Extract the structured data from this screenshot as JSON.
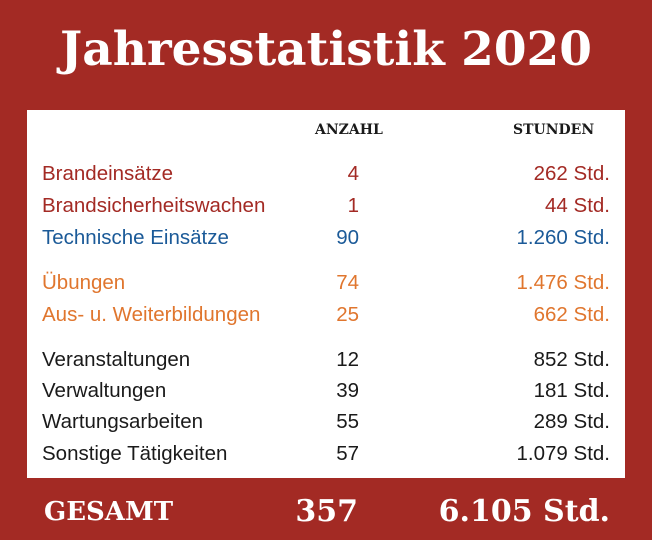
{
  "title": "Jahresstatistik 2020",
  "headers": {
    "anzahl": "ANZAHL",
    "stunden": "STUNDEN"
  },
  "rows": [
    {
      "label": "Brandeinsätze",
      "count": "4",
      "hours": "262 Std.",
      "color": "#a32a24"
    },
    {
      "label": "Brandsicherheitswachen",
      "count": "1",
      "hours": "44 Std.",
      "color": "#a32a24"
    },
    {
      "label": "Technische Einsätze",
      "count": "90",
      "hours": "1.260 Std.",
      "color": "#1b5a98"
    },
    {
      "label": "Übungen",
      "count": "74",
      "hours": "1.476 Std.",
      "color": "#e0762e"
    },
    {
      "label": "Aus- u. Weiterbildungen",
      "count": "25",
      "hours": "662 Std.",
      "color": "#e0762e"
    },
    {
      "label": "Veranstaltungen",
      "count": "12",
      "hours": "852 Std.",
      "color": "#1a1a1a"
    },
    {
      "label": "Verwaltungen",
      "count": "39",
      "hours": "181 Std.",
      "color": "#1a1a1a"
    },
    {
      "label": "Wartungsarbeiten",
      "count": "55",
      "hours": "289 Std.",
      "color": "#1a1a1a"
    },
    {
      "label": "Sonstige Tätigkeiten",
      "count": "57",
      "hours": "1.079 Std.",
      "color": "#1a1a1a"
    }
  ],
  "total": {
    "label": "GESAMT",
    "count": "357",
    "hours": "6.105 Std."
  },
  "colors": {
    "background": "#a32a24",
    "panel": "#ffffff"
  }
}
